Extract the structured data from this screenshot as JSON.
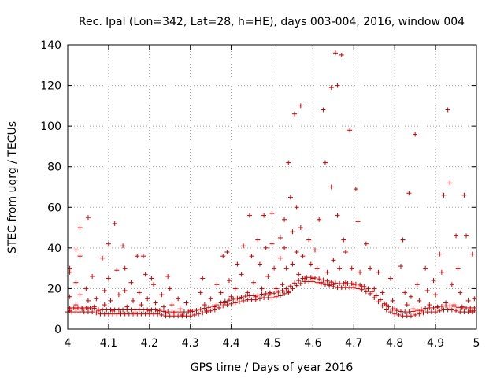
{
  "chart_data": {
    "type": "scatter",
    "title": "Rec. lpal (Lon=342, Lat=28, h=HE), days 003-004, 2016, window 004",
    "xlabel": "GPS time / Days of year 2016",
    "ylabel": "STEC from uqrg / TECUs",
    "xlim": [
      4,
      5
    ],
    "ylim": [
      0,
      140
    ],
    "xticks": [
      4,
      4.1,
      4.2,
      4.3,
      4.4,
      4.5,
      4.6,
      4.7,
      4.8,
      4.9,
      5
    ],
    "xtick_labels": [
      "4",
      "4.1",
      "4.2",
      "4.3",
      "4.4",
      "4.5",
      "4.6",
      "4.7",
      "4.8",
      "4.9",
      "5"
    ],
    "yticks": [
      0,
      20,
      40,
      60,
      80,
      100,
      120,
      140
    ],
    "ytick_labels": [
      "0",
      "20",
      "40",
      "60",
      "80",
      "100",
      "120",
      "140"
    ],
    "grid": "dotted",
    "marker": "+",
    "series": [
      {
        "name": "STEC",
        "color": "#cc0000",
        "points": [
          [
            4.005,
            30
          ],
          [
            4.005,
            28
          ],
          [
            4.005,
            16
          ],
          [
            4.005,
            10
          ],
          [
            4.005,
            9
          ],
          [
            4.02,
            39
          ],
          [
            4.02,
            23
          ],
          [
            4.02,
            12
          ],
          [
            4.02,
            10
          ],
          [
            4.03,
            50
          ],
          [
            4.03,
            36
          ],
          [
            4.03,
            17
          ],
          [
            4.035,
            10
          ],
          [
            4.045,
            20
          ],
          [
            4.05,
            55
          ],
          [
            4.05,
            14
          ],
          [
            4.05,
            10
          ],
          [
            4.06,
            26
          ],
          [
            4.065,
            11
          ],
          [
            4.07,
            15
          ],
          [
            4.075,
            9
          ],
          [
            4.085,
            35
          ],
          [
            4.09,
            19
          ],
          [
            4.09,
            12
          ],
          [
            4.1,
            42
          ],
          [
            4.1,
            25
          ],
          [
            4.105,
            14
          ],
          [
            4.11,
            9
          ],
          [
            4.115,
            52
          ],
          [
            4.12,
            29
          ],
          [
            4.125,
            17
          ],
          [
            4.13,
            8
          ],
          [
            4.135,
            41
          ],
          [
            4.14,
            30
          ],
          [
            4.14,
            19
          ],
          [
            4.145,
            11
          ],
          [
            4.155,
            23
          ],
          [
            4.16,
            14
          ],
          [
            4.165,
            8
          ],
          [
            4.17,
            36
          ],
          [
            4.175,
            18
          ],
          [
            4.18,
            12
          ],
          [
            4.185,
            36
          ],
          [
            4.19,
            27
          ],
          [
            4.195,
            15
          ],
          [
            4.2,
            9
          ],
          [
            4.205,
            25
          ],
          [
            4.21,
            22
          ],
          [
            4.215,
            13
          ],
          [
            4.22,
            9
          ],
          [
            4.23,
            17
          ],
          [
            4.235,
            11
          ],
          [
            4.24,
            8
          ],
          [
            4.245,
            26
          ],
          [
            4.25,
            20
          ],
          [
            4.255,
            12
          ],
          [
            4.26,
            8
          ],
          [
            4.27,
            15
          ],
          [
            4.275,
            10
          ],
          [
            4.28,
            7
          ],
          [
            4.29,
            13
          ],
          [
            4.3,
            9
          ],
          [
            4.31,
            7
          ],
          [
            4.325,
            18
          ],
          [
            4.33,
            25
          ],
          [
            4.335,
            12
          ],
          [
            4.34,
            9
          ],
          [
            4.35,
            15
          ],
          [
            4.36,
            11
          ],
          [
            4.365,
            22
          ],
          [
            4.375,
            18
          ],
          [
            4.38,
            36
          ],
          [
            4.385,
            13
          ],
          [
            4.39,
            38
          ],
          [
            4.395,
            24
          ],
          [
            4.4,
            16
          ],
          [
            4.41,
            20
          ],
          [
            4.415,
            32
          ],
          [
            4.42,
            15
          ],
          [
            4.425,
            27
          ],
          [
            4.43,
            41
          ],
          [
            4.44,
            18
          ],
          [
            4.445,
            56
          ],
          [
            4.45,
            36
          ],
          [
            4.455,
            23
          ],
          [
            4.46,
            16
          ],
          [
            4.465,
            44
          ],
          [
            4.47,
            32
          ],
          [
            4.475,
            20
          ],
          [
            4.48,
            56
          ],
          [
            4.485,
            40
          ],
          [
            4.49,
            26
          ],
          [
            4.495,
            18
          ],
          [
            4.5,
            57
          ],
          [
            4.5,
            42
          ],
          [
            4.505,
            30
          ],
          [
            4.51,
            20
          ],
          [
            4.52,
            45
          ],
          [
            4.52,
            35
          ],
          [
            4.525,
            22
          ],
          [
            4.53,
            54
          ],
          [
            4.53,
            40
          ],
          [
            4.535,
            30
          ],
          [
            4.54,
            18
          ],
          [
            4.54,
            82
          ],
          [
            4.545,
            65
          ],
          [
            4.55,
            48
          ],
          [
            4.55,
            32
          ],
          [
            4.555,
            106
          ],
          [
            4.56,
            60
          ],
          [
            4.56,
            38
          ],
          [
            4.565,
            27
          ],
          [
            4.57,
            110
          ],
          [
            4.57,
            50
          ],
          [
            4.575,
            36
          ],
          [
            4.58,
            25
          ],
          [
            4.59,
            44
          ],
          [
            4.595,
            32
          ],
          [
            4.6,
            25
          ],
          [
            4.605,
            39
          ],
          [
            4.61,
            30
          ],
          [
            4.615,
            54
          ],
          [
            4.62,
            23
          ],
          [
            4.625,
            108
          ],
          [
            4.63,
            82
          ],
          [
            4.635,
            28
          ],
          [
            4.64,
            22
          ],
          [
            4.645,
            119
          ],
          [
            4.645,
            70
          ],
          [
            4.65,
            34
          ],
          [
            4.65,
            22
          ],
          [
            4.655,
            136
          ],
          [
            4.66,
            120
          ],
          [
            4.66,
            56
          ],
          [
            4.665,
            30
          ],
          [
            4.67,
            135
          ],
          [
            4.675,
            44
          ],
          [
            4.68,
            38
          ],
          [
            4.68,
            23
          ],
          [
            4.69,
            98
          ],
          [
            4.695,
            30
          ],
          [
            4.7,
            22
          ],
          [
            4.705,
            69
          ],
          [
            4.71,
            53
          ],
          [
            4.715,
            28
          ],
          [
            4.72,
            21
          ],
          [
            4.73,
            42
          ],
          [
            4.74,
            30
          ],
          [
            4.75,
            20
          ],
          [
            4.76,
            28
          ],
          [
            4.77,
            18
          ],
          [
            4.78,
            12
          ],
          [
            4.79,
            25
          ],
          [
            4.795,
            14
          ],
          [
            4.8,
            10
          ],
          [
            4.815,
            31
          ],
          [
            4.82,
            44
          ],
          [
            4.825,
            18
          ],
          [
            4.83,
            12
          ],
          [
            4.835,
            67
          ],
          [
            4.84,
            16
          ],
          [
            4.845,
            10
          ],
          [
            4.85,
            96
          ],
          [
            4.855,
            22
          ],
          [
            4.86,
            14
          ],
          [
            4.865,
            9
          ],
          [
            4.875,
            30
          ],
          [
            4.88,
            19
          ],
          [
            4.885,
            12
          ],
          [
            4.895,
            24
          ],
          [
            4.9,
            17
          ],
          [
            4.905,
            11
          ],
          [
            4.91,
            37
          ],
          [
            4.915,
            28
          ],
          [
            4.92,
            66
          ],
          [
            4.925,
            13
          ],
          [
            4.93,
            108
          ],
          [
            4.935,
            72
          ],
          [
            4.94,
            22
          ],
          [
            4.945,
            12
          ],
          [
            4.95,
            46
          ],
          [
            4.955,
            30
          ],
          [
            4.96,
            18
          ],
          [
            4.965,
            11
          ],
          [
            4.97,
            66
          ],
          [
            4.975,
            46
          ],
          [
            4.98,
            14
          ],
          [
            4.985,
            9
          ],
          [
            4.99,
            37
          ],
          [
            4.995,
            15
          ],
          [
            4.995,
            9
          ]
        ],
        "band_points_note": "dense low band values",
        "band": [
          [
            4.0,
            9
          ],
          [
            4.02,
            9
          ],
          [
            4.04,
            9
          ],
          [
            4.06,
            9
          ],
          [
            4.08,
            8
          ],
          [
            4.1,
            8
          ],
          [
            4.12,
            8
          ],
          [
            4.14,
            8
          ],
          [
            4.16,
            8
          ],
          [
            4.18,
            8
          ],
          [
            4.2,
            8
          ],
          [
            4.22,
            8
          ],
          [
            4.24,
            7
          ],
          [
            4.26,
            7
          ],
          [
            4.28,
            7
          ],
          [
            4.3,
            7
          ],
          [
            4.32,
            8
          ],
          [
            4.34,
            9
          ],
          [
            4.36,
            10
          ],
          [
            4.38,
            12
          ],
          [
            4.4,
            13
          ],
          [
            4.42,
            14
          ],
          [
            4.44,
            15
          ],
          [
            4.46,
            15
          ],
          [
            4.48,
            16
          ],
          [
            4.5,
            16
          ],
          [
            4.52,
            17
          ],
          [
            4.54,
            19
          ],
          [
            4.56,
            22
          ],
          [
            4.58,
            24
          ],
          [
            4.6,
            24
          ],
          [
            4.62,
            23
          ],
          [
            4.64,
            22
          ],
          [
            4.66,
            21
          ],
          [
            4.68,
            21
          ],
          [
            4.7,
            21
          ],
          [
            4.72,
            20
          ],
          [
            4.74,
            18
          ],
          [
            4.76,
            14
          ],
          [
            4.78,
            10
          ],
          [
            4.8,
            8
          ],
          [
            4.82,
            7
          ],
          [
            4.84,
            7
          ],
          [
            4.86,
            8
          ],
          [
            4.88,
            9
          ],
          [
            4.9,
            9
          ],
          [
            4.92,
            10
          ],
          [
            4.94,
            10
          ],
          [
            4.96,
            9
          ],
          [
            4.98,
            9
          ],
          [
            5.0,
            9
          ]
        ]
      }
    ]
  }
}
